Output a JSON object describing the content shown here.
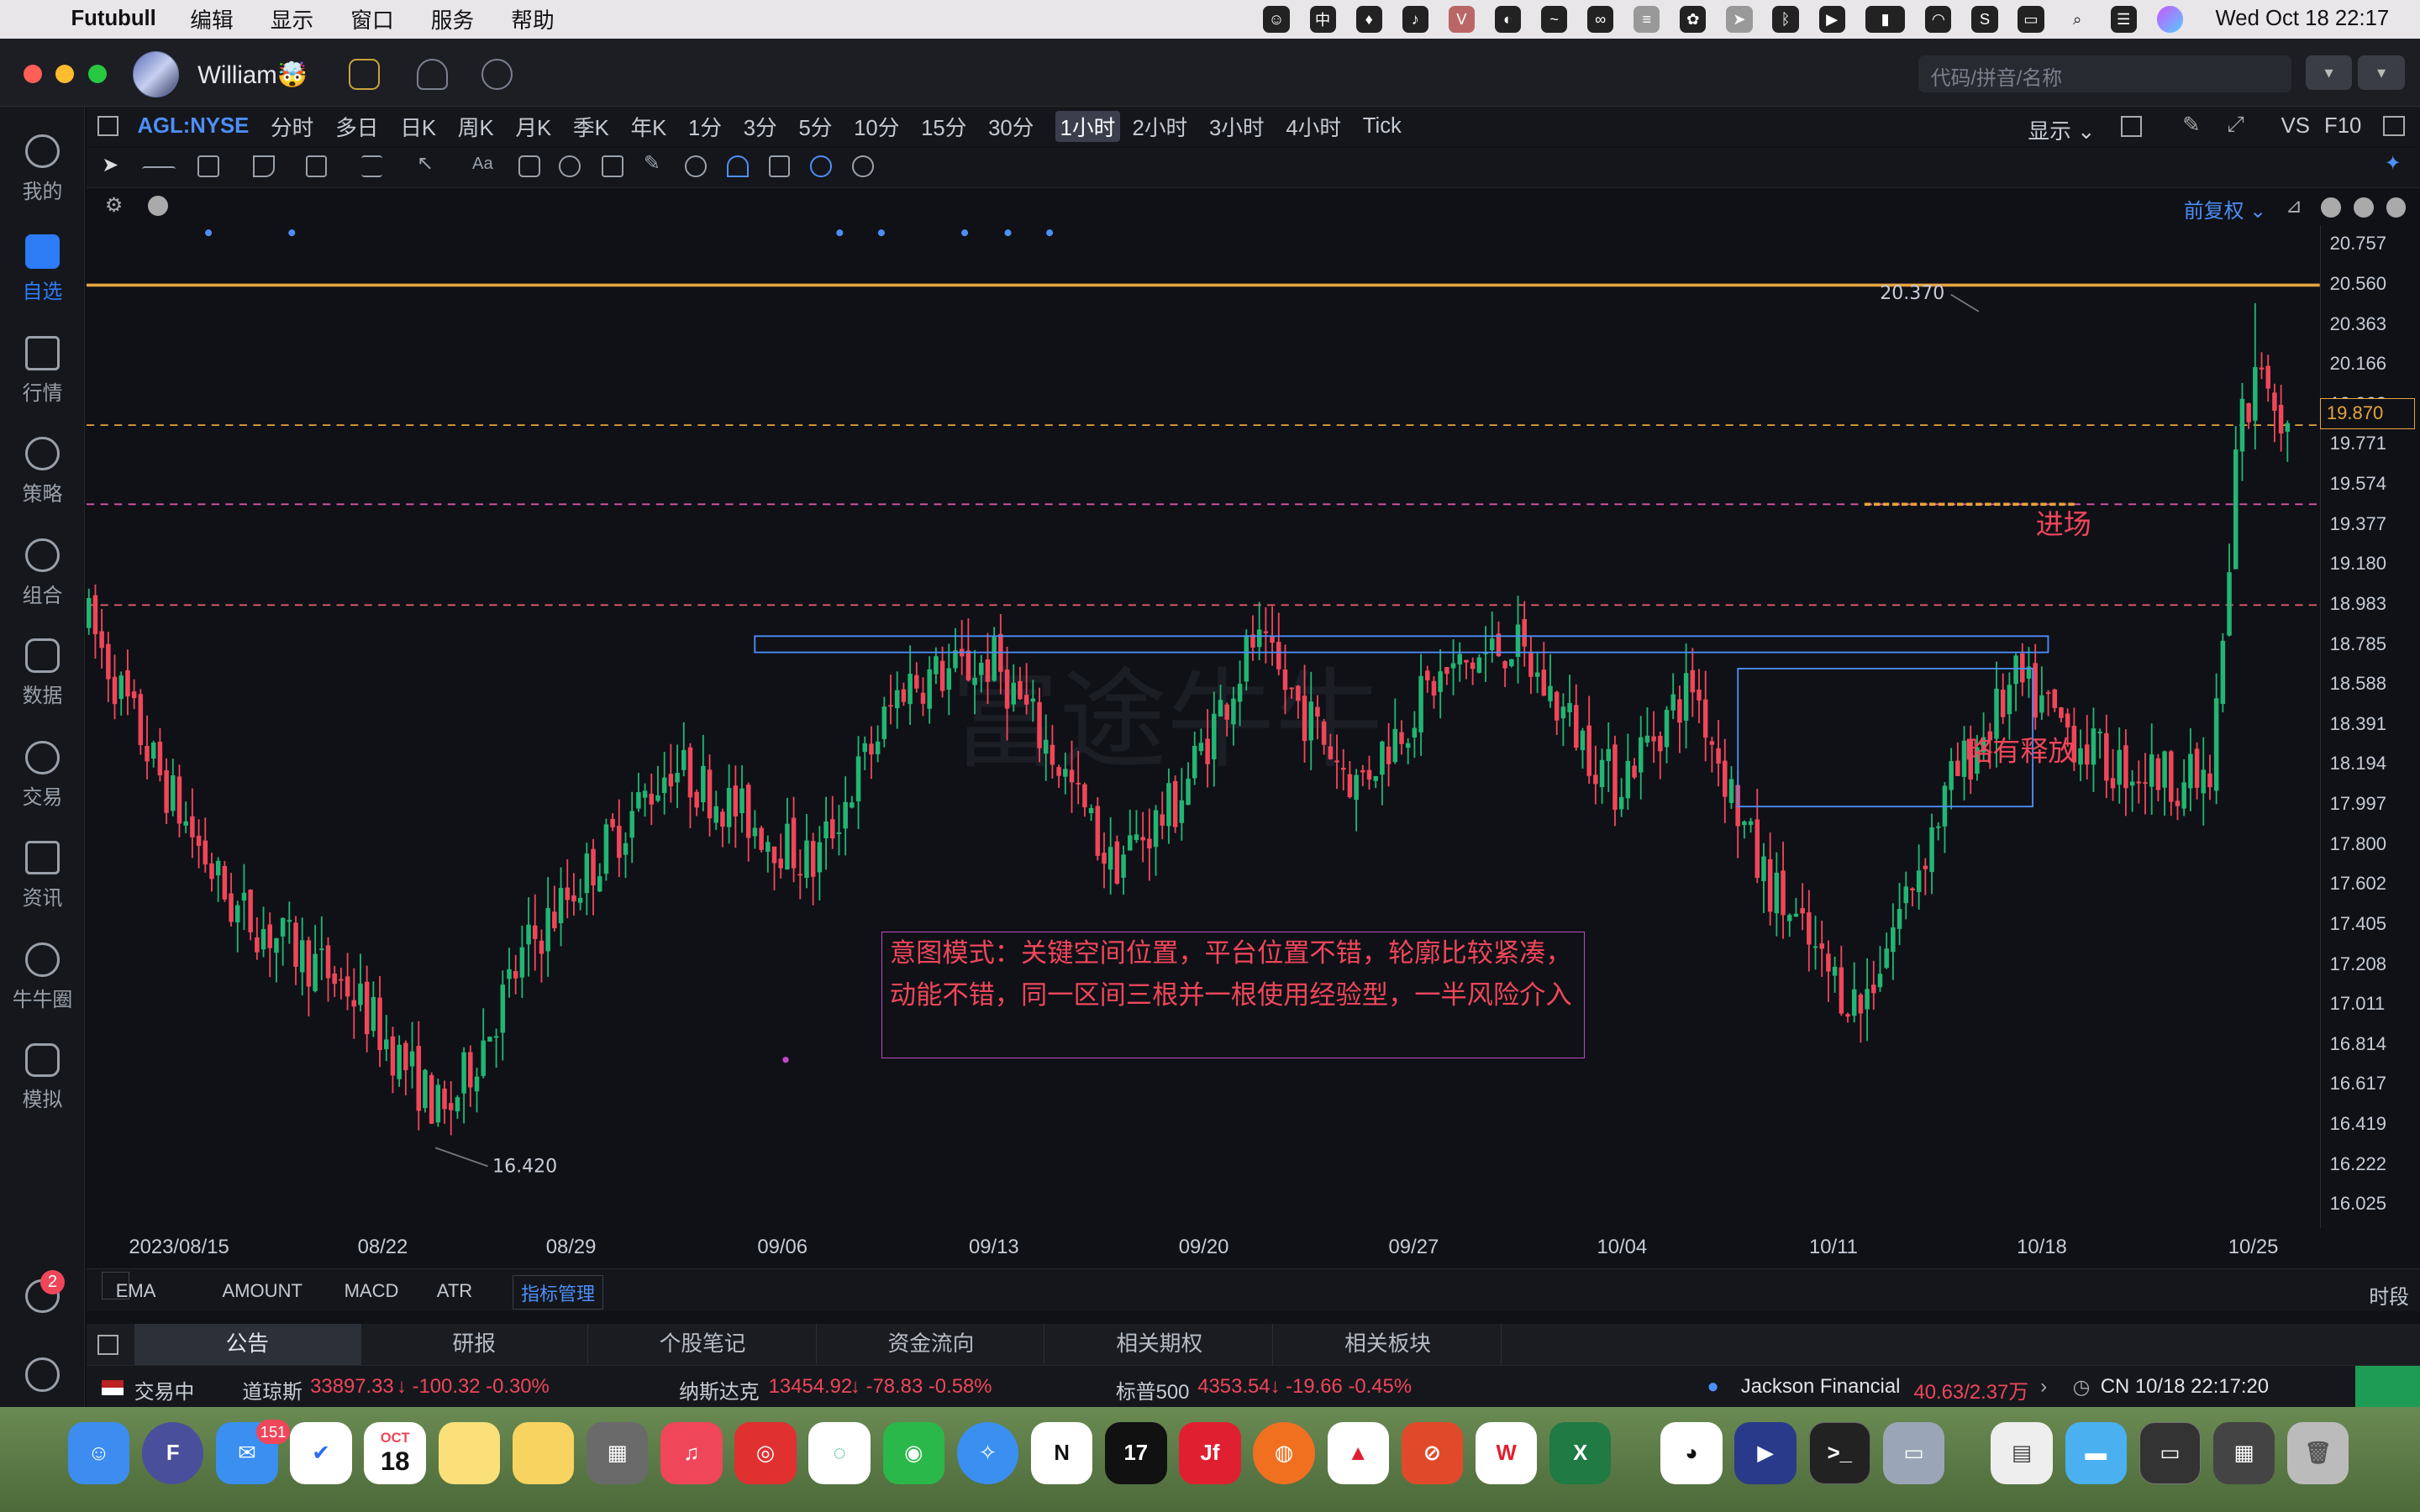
{
  "menubar": {
    "app_name": "Futubull",
    "menus": [
      "编辑",
      "显示",
      "窗口",
      "服务",
      "帮助"
    ],
    "clock": "Wed Oct 18  22:17"
  },
  "window": {
    "username": "William🤯",
    "search_placeholder": "代码/拼音/名称"
  },
  "sidebar": {
    "items": [
      {
        "label": "我的"
      },
      {
        "label": "自选"
      },
      {
        "label": "行情"
      },
      {
        "label": "策略"
      },
      {
        "label": "组合"
      },
      {
        "label": "数据"
      },
      {
        "label": "交易"
      },
      {
        "label": "资讯"
      },
      {
        "label": "牛牛圈"
      },
      {
        "label": "模拟"
      }
    ],
    "chat_badge": "2"
  },
  "periodbar": {
    "symbol": "AGL:NYSE",
    "tabs": [
      "分时",
      "多日",
      "日K",
      "周K",
      "月K",
      "季K",
      "年K",
      "1分",
      "3分",
      "5分",
      "10分",
      "15分",
      "30分",
      "1小时",
      "2小时",
      "3小时",
      "4小时",
      "Tick"
    ],
    "active_tab": "1小时",
    "display_label": "显示",
    "vs_label": "VS",
    "f10_label": "F10"
  },
  "chart_header": {
    "adjust_label": "前复权"
  },
  "chart_data": {
    "type": "candlestick",
    "interval": "1小时",
    "y_ticks": [
      "20.757",
      "20.560",
      "20.363",
      "20.166",
      "19.968",
      "19.771",
      "19.574",
      "19.377",
      "19.180",
      "18.983",
      "18.785",
      "18.588",
      "18.391",
      "18.194",
      "17.997",
      "17.800",
      "17.602",
      "17.405",
      "17.208",
      "17.011",
      "16.814",
      "16.617",
      "16.419",
      "16.222",
      "16.025"
    ],
    "x_ticks": [
      "2023/08/15",
      "08/22",
      "08/29",
      "09/06",
      "09/13",
      "09/20",
      "09/27",
      "10/04",
      "10/11",
      "10/18",
      "10/25"
    ],
    "high_label": "20.370",
    "low_label": "16.420",
    "current_price": "19.870",
    "price_path": [
      [
        0,
        18.9
      ],
      [
        10,
        18.2
      ],
      [
        22,
        17.5
      ],
      [
        40,
        17.1
      ],
      [
        55,
        16.45
      ],
      [
        68,
        17.3
      ],
      [
        90,
        18.2
      ],
      [
        112,
        17.7
      ],
      [
        126,
        18.6
      ],
      [
        140,
        18.7
      ],
      [
        150,
        18.2
      ],
      [
        158,
        17.7
      ],
      [
        168,
        18.0
      ],
      [
        180,
        18.8
      ],
      [
        196,
        18.1
      ],
      [
        208,
        18.6
      ],
      [
        220,
        18.8
      ],
      [
        236,
        18.1
      ],
      [
        248,
        18.6
      ],
      [
        258,
        17.7
      ],
      [
        268,
        17.2
      ],
      [
        274,
        17.0
      ],
      [
        288,
        18.1
      ],
      [
        298,
        18.6
      ],
      [
        312,
        18.2
      ],
      [
        328,
        18.1
      ],
      [
        333,
        19.8
      ],
      [
        336,
        20.2
      ],
      [
        340,
        19.85
      ]
    ],
    "horizontal_levels": [
      {
        "price": 20.56,
        "style": "solid",
        "color": "#e8a33c"
      },
      {
        "price": 19.87,
        "style": "dashed",
        "color": "#e8a33c"
      },
      {
        "price": 19.48,
        "style": "dashed",
        "color": "#d655a8"
      },
      {
        "price": 18.983,
        "style": "dashed",
        "color": "#e05a6a"
      }
    ],
    "entry_level": 19.48,
    "resistance_box": {
      "price_top": 18.83,
      "price_bottom": 18.75
    },
    "consolidation_box": {
      "price_top": 18.67,
      "price_bottom": 17.99
    },
    "annotations": {
      "entry": "进场",
      "release": "略有释放",
      "intent": "意图模式：关键空间位置，平台位置不错，轮廓比较紧凑，动能不错，同一区间三根并一根使用经验型，一半风险介入"
    },
    "colors": {
      "up": "#22b573",
      "down": "#f0465a"
    }
  },
  "indicators": {
    "tabs": [
      "EMA",
      "AMOUNT",
      "MACD",
      "ATR"
    ],
    "manage_label": "指标管理",
    "period_label": "时段"
  },
  "bottom_panel": {
    "tabs": [
      "公告",
      "研报",
      "个股笔记",
      "资金流向",
      "相关期权",
      "相关板块"
    ],
    "active_tab": "公告"
  },
  "statusbar": {
    "trading_status": "交易中",
    "indices": [
      {
        "name": "道琼斯",
        "value": "33897.33",
        "change": "-100.32",
        "pct": "-0.30%"
      },
      {
        "name": "纳斯达克",
        "value": "13454.92",
        "change": "-78.83",
        "pct": "-0.58%"
      },
      {
        "name": "标普500",
        "value": "4353.54",
        "change": "-19.66",
        "pct": "-0.45%"
      }
    ],
    "news_name": "Jackson Financial",
    "news_value": "40.63/2.37万",
    "time": "CN 10/18 22:17:20"
  },
  "dock": {
    "calendar_month": "OCT",
    "calendar_day": "18",
    "mail_badge": "151"
  }
}
